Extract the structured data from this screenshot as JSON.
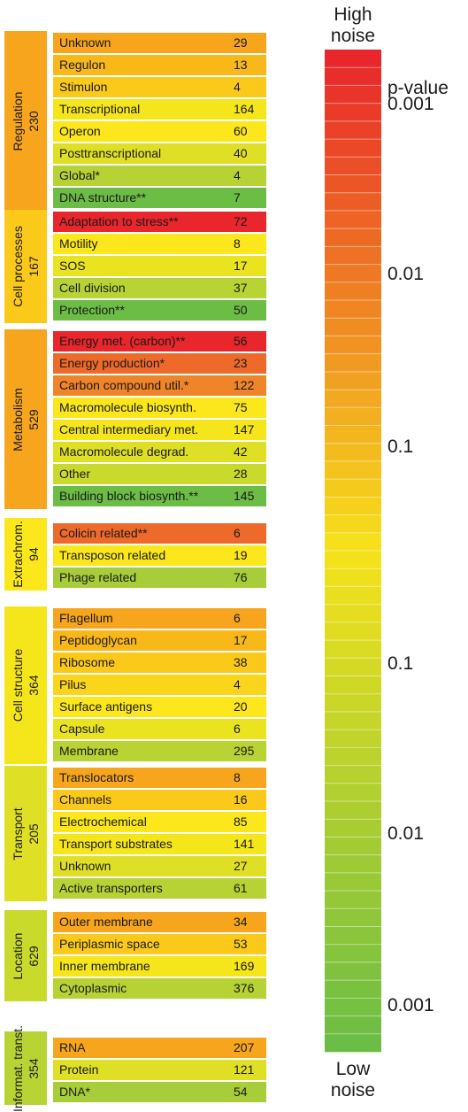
{
  "scale": {
    "top_label": [
      "High",
      "noise"
    ],
    "bottom_label": [
      "Low",
      "noise"
    ],
    "pvalue_title": "p-value",
    "ticks": [
      "0.001",
      "0.01",
      "0.1",
      "0.1",
      "0.01",
      "0.001"
    ],
    "colors": {
      "high": "#e8262b",
      "mid": "#f6e21b",
      "low": "#6cbd45"
    }
  },
  "groups": [
    {
      "name": "Regulation",
      "count": "230",
      "color": "#f6a51c",
      "rows": [
        {
          "label": "Unknown",
          "value": "29",
          "color": "#f6a51c"
        },
        {
          "label": "Regulon",
          "value": "13",
          "color": "#f9b81a"
        },
        {
          "label": "Stimulon",
          "value": "4",
          "color": "#fbc91a"
        },
        {
          "label": "Transcriptional",
          "value": "164",
          "color": "#f5e51b"
        },
        {
          "label": "Operon",
          "value": "60",
          "color": "#fbe71b"
        },
        {
          "label": "Posttranscriptional",
          "value": "40",
          "color": "#dfe025"
        },
        {
          "label": "Global*",
          "value": "4",
          "color": "#b6d234"
        },
        {
          "label": "DNA structure**",
          "value": "7",
          "color": "#6cbd45"
        }
      ]
    },
    {
      "name": "Cell processes",
      "count": "167",
      "color": "#fbc91a",
      "rows": [
        {
          "label": "Adaptation to stress**",
          "value": "72",
          "color": "#e8262b"
        },
        {
          "label": "Motility",
          "value": "8",
          "color": "#fbe71b"
        },
        {
          "label": "SOS",
          "value": "17",
          "color": "#e9e41f"
        },
        {
          "label": "Cell division",
          "value": "37",
          "color": "#b8d334"
        },
        {
          "label": "Protection**",
          "value": "50",
          "color": "#6cbd45"
        }
      ]
    },
    {
      "name": "Metabolism",
      "count": "529",
      "color": "#f6a51c",
      "rows": [
        {
          "label": "Energy met. (carbon)**",
          "value": "56",
          "color": "#e8262b"
        },
        {
          "label": "Energy production*",
          "value": "23",
          "color": "#ee6a2a"
        },
        {
          "label": "Carbon compound util.*",
          "value": "122",
          "color": "#f08428"
        },
        {
          "label": "Macromolecule biosynth.",
          "value": "75",
          "color": "#fbe71b"
        },
        {
          "label": "Central intermediary met.",
          "value": "147",
          "color": "#f5e51b"
        },
        {
          "label": "Macromolecule degrad.",
          "value": "42",
          "color": "#dfe025"
        },
        {
          "label": "Other",
          "value": "28",
          "color": "#c9da2c"
        },
        {
          "label": "Building block biosynth.**",
          "value": "145",
          "color": "#6cbd45"
        }
      ]
    },
    {
      "name": "Extrachrom.",
      "count": "94",
      "color": "#fbe71b",
      "rows": [
        {
          "label": "Colicin related**",
          "value": "6",
          "color": "#ee6a2a"
        },
        {
          "label": "Transposon related",
          "value": "19",
          "color": "#fbe71b"
        },
        {
          "label": "Phage related",
          "value": "76",
          "color": "#a8cd3a"
        }
      ]
    },
    {
      "name": "Cell structure",
      "count": "364",
      "color": "#f5e51b",
      "rows": [
        {
          "label": "Flagellum",
          "value": "6",
          "color": "#f6a51c"
        },
        {
          "label": "Peptidoglycan",
          "value": "17",
          "color": "#f9b81a"
        },
        {
          "label": "Ribosome",
          "value": "38",
          "color": "#fbc91a"
        },
        {
          "label": "Pilus",
          "value": "4",
          "color": "#fbd51a"
        },
        {
          "label": "Surface antigens",
          "value": "20",
          "color": "#fbe71b"
        },
        {
          "label": "Capsule",
          "value": "6",
          "color": "#e9e41f"
        },
        {
          "label": "Membrane",
          "value": "295",
          "color": "#b8d334"
        }
      ]
    },
    {
      "name": "Transport",
      "count": "205",
      "color": "#dfe025",
      "rows": [
        {
          "label": "Translocators",
          "value": "8",
          "color": "#f6a51c"
        },
        {
          "label": "Channels",
          "value": "16",
          "color": "#fbc91a"
        },
        {
          "label": "Electrochemical",
          "value": "85",
          "color": "#fbe71b"
        },
        {
          "label": "Transport substrates",
          "value": "141",
          "color": "#f5e51b"
        },
        {
          "label": "Unknown",
          "value": "27",
          "color": "#dfe025"
        },
        {
          "label": "Active transporters",
          "value": "61",
          "color": "#b6d234"
        }
      ]
    },
    {
      "name": "Location",
      "count": "629",
      "color": "#c9da2c",
      "rows": [
        {
          "label": "Outer membrane",
          "value": "34",
          "color": "#f6a51c"
        },
        {
          "label": "Periplasmic space",
          "value": "53",
          "color": "#fbc91a"
        },
        {
          "label": "Inner membrane",
          "value": "169",
          "color": "#f5e51b"
        },
        {
          "label": "Cytoplasmic",
          "value": "376",
          "color": "#b6d234"
        }
      ]
    },
    {
      "name": "Informat. transt.",
      "count": "354",
      "color": "#b8d334",
      "rows": [
        {
          "label": "RNA",
          "value": "207",
          "color": "#f6a51c"
        },
        {
          "label": "Protein",
          "value": "121",
          "color": "#dfe025"
        },
        {
          "label": "DNA*",
          "value": "54",
          "color": "#a8cd3a"
        }
      ]
    }
  ]
}
